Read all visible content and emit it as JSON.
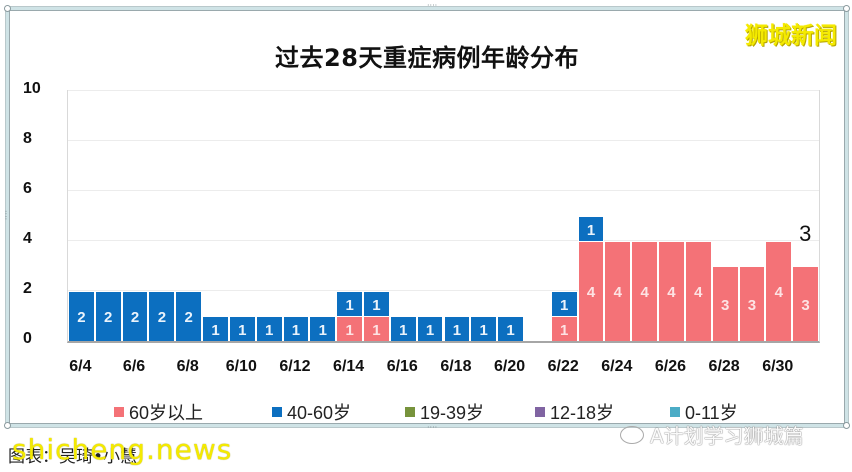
{
  "chart_data": {
    "type": "bar",
    "stacked": true,
    "title": "过去28天重症病例年龄分布",
    "xlabel": "",
    "ylabel": "",
    "ylim": [
      0,
      10
    ],
    "yticks": [
      0,
      2,
      4,
      6,
      8,
      10
    ],
    "grid": true,
    "legend_position": "bottom",
    "categories": [
      "6/4",
      "6/5",
      "6/6",
      "6/7",
      "6/8",
      "6/9",
      "6/10",
      "6/11",
      "6/12",
      "6/13",
      "6/14",
      "6/15",
      "6/16",
      "6/17",
      "6/18",
      "6/19",
      "6/20",
      "6/21",
      "6/22",
      "6/23",
      "6/24",
      "6/25",
      "6/26",
      "6/27",
      "6/28",
      "6/29",
      "6/30",
      "7/1"
    ],
    "xtick_labels": [
      "6/4",
      "6/6",
      "6/8",
      "6/10",
      "6/12",
      "6/14",
      "6/16",
      "6/18",
      "6/20",
      "6/22",
      "6/24",
      "6/26",
      "6/28",
      "6/30"
    ],
    "series": [
      {
        "name": "60岁以上",
        "color": "#f47277",
        "values": [
          0,
          0,
          0,
          0,
          0,
          0,
          0,
          0,
          0,
          0,
          1,
          1,
          0,
          0,
          0,
          0,
          0,
          0,
          1,
          4,
          4,
          4,
          4,
          4,
          3,
          3,
          4,
          3
        ]
      },
      {
        "name": "40-60岁",
        "color": "#0c6fc0",
        "values": [
          2,
          2,
          2,
          2,
          2,
          1,
          1,
          1,
          1,
          1,
          1,
          1,
          1,
          1,
          1,
          1,
          1,
          0,
          1,
          1,
          0,
          0,
          0,
          0,
          0,
          0,
          0,
          0
        ]
      },
      {
        "name": "19-39岁",
        "color": "#77933c",
        "values": [
          0,
          0,
          0,
          0,
          0,
          0,
          0,
          0,
          0,
          0,
          0,
          0,
          0,
          0,
          0,
          0,
          0,
          0,
          0,
          0,
          0,
          0,
          0,
          0,
          0,
          0,
          0,
          0
        ]
      },
      {
        "name": "12-18岁",
        "color": "#8064a2",
        "values": [
          0,
          0,
          0,
          0,
          0,
          0,
          0,
          0,
          0,
          0,
          0,
          0,
          0,
          0,
          0,
          0,
          0,
          0,
          0,
          0,
          0,
          0,
          0,
          0,
          0,
          0,
          0,
          0
        ]
      },
      {
        "name": "0-11岁",
        "color": "#4bacc6",
        "values": [
          0,
          0,
          0,
          0,
          0,
          0,
          0,
          0,
          0,
          0,
          0,
          0,
          0,
          0,
          0,
          0,
          0,
          0,
          0,
          0,
          0,
          0,
          0,
          0,
          0,
          0,
          0,
          0
        ]
      }
    ],
    "annotations": [
      {
        "text": "3",
        "category": "7/1"
      }
    ]
  },
  "watermarks": {
    "brand": "狮城新闻",
    "site": "shicheng.news",
    "credit": "图表：吴琦•小慧",
    "wechat": "A计划学习狮城篇"
  }
}
